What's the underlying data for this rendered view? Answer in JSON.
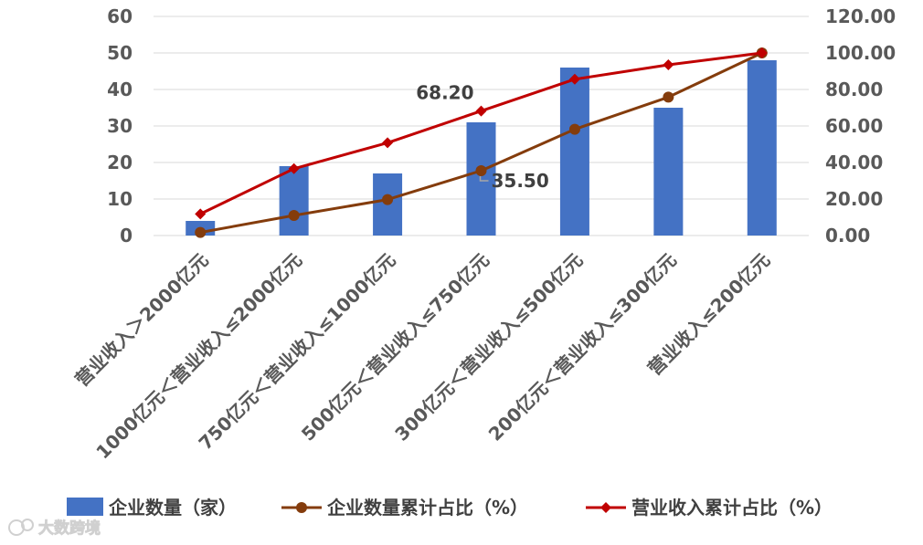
{
  "watermark": {
    "text": "大数跨境"
  },
  "chart_data": {
    "type": "bar",
    "categories": [
      "营业收入＞2000亿元",
      "1000亿元＜营业收入≤2000亿元",
      "750亿元＜营业收入≤1000亿元",
      "500亿元＜营业收入≤750亿元",
      "300亿元＜营业收入≤500亿元",
      "200亿元＜营业收入≤300亿元",
      "营业收入≤200亿元"
    ],
    "series": [
      {
        "name": "企业数量（家）",
        "kind": "bar",
        "axis": "left",
        "color": "#4472C4",
        "values": [
          4,
          19,
          17,
          31,
          46,
          35,
          48
        ]
      },
      {
        "name": "企业数量累计占比（%）",
        "kind": "line",
        "axis": "right",
        "color": "#843C0C",
        "marker": "circle",
        "values": [
          1.7,
          11.0,
          19.7,
          35.5,
          58.2,
          75.8,
          100.0
        ]
      },
      {
        "name": "营业收入累计占比（%）",
        "kind": "line",
        "axis": "right",
        "color": "#C00000",
        "marker": "diamond",
        "values": [
          11.8,
          36.6,
          50.8,
          68.2,
          85.6,
          93.5,
          100.0
        ]
      }
    ],
    "y_left": {
      "min": 0,
      "max": 60,
      "step": 10,
      "tick_labels": [
        "0",
        "10",
        "20",
        "30",
        "40",
        "50",
        "60"
      ]
    },
    "y_right": {
      "min": 0,
      "max": 120,
      "step": 20,
      "tick_labels": [
        "0.00",
        "20.00",
        "40.00",
        "60.00",
        "80.00",
        "100.00",
        "120.00"
      ]
    },
    "annotations": [
      {
        "series": 2,
        "index": 3,
        "text": "68.20"
      },
      {
        "series": 1,
        "index": 3,
        "text": "35.50"
      }
    ],
    "grid": true,
    "legend_position": "bottom"
  }
}
